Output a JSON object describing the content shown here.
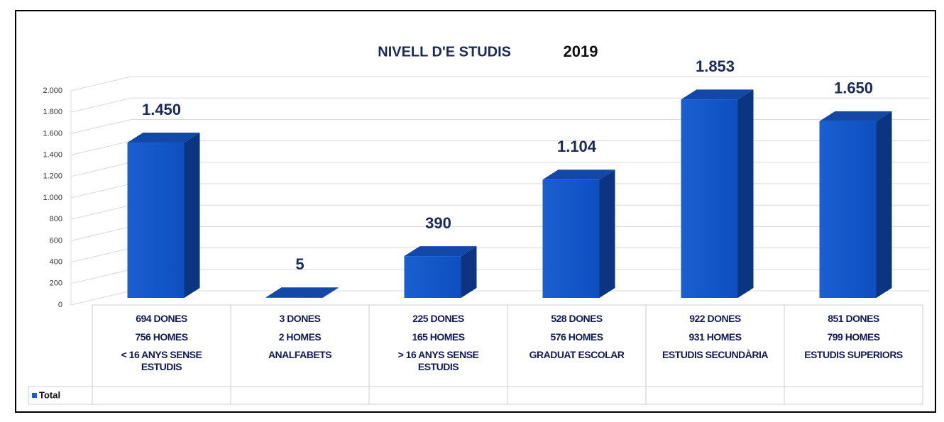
{
  "chart_data": {
    "type": "bar3d",
    "title": "NIVELL D'E STUDIS",
    "subtitle": "2019",
    "categories": [
      "< 16 ANYS SENSE ESTUDIS",
      "ANALFABETS",
      "> 16 ANYS SENSE ESTUDIS",
      "GRADUAT ESCOLAR",
      "ESTUDIS SECUNDÀRIA",
      "ESTUDIS SUPERIORS"
    ],
    "series": [
      {
        "name": "Total",
        "color": "#1a5fd0",
        "values": [
          1450,
          5,
          390,
          1104,
          1853,
          1650
        ],
        "value_labels": [
          "1.450",
          "5",
          "390",
          "1.104",
          "1.853",
          "1.650"
        ]
      }
    ],
    "breakdown": [
      {
        "name": "DONES",
        "values": [
          694,
          3,
          225,
          528,
          922,
          851
        ]
      },
      {
        "name": "HOMES",
        "values": [
          756,
          2,
          165,
          576,
          931,
          799
        ]
      }
    ],
    "ylim": [
      0,
      2000
    ],
    "yticks": [
      0,
      {
        "value": 200,
        "label": "200"
      },
      {
        "value": 400,
        "label": "400"
      },
      {
        "value": 600,
        "label": "600"
      },
      {
        "value": 800,
        "label": "800"
      },
      {
        "value": 1000,
        "label": "1.000"
      },
      {
        "value": 1200,
        "label": "1.200"
      },
      {
        "value": 1400,
        "label": "1.400"
      },
      {
        "value": 1600,
        "label": "1.600"
      },
      {
        "value": 1800,
        "label": "1.800"
      },
      {
        "value": 2000,
        "label": "2.000"
      }
    ],
    "grid": true
  }
}
